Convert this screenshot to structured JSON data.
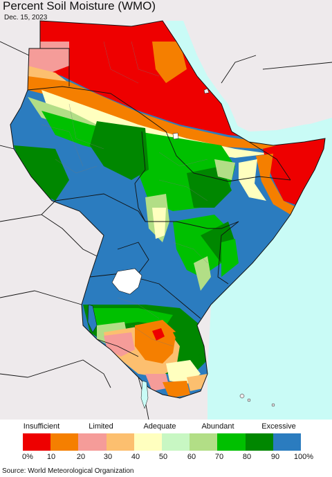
{
  "title": "Percent Soil Moisture (WMO)",
  "date": "Dec. 15, 2023",
  "source": "Source: World Meteorological Organization",
  "legend": {
    "categories": [
      "Insufficient",
      "Limited",
      "Adequate",
      "Abundant",
      "Excessive"
    ],
    "ticks": [
      "0%",
      "10",
      "20",
      "30",
      "40",
      "50",
      "60",
      "70",
      "80",
      "90",
      "100%"
    ],
    "colors": [
      "#ee0000",
      "#f57f00",
      "#f59c99",
      "#fcbf6f",
      "#ffffbf",
      "#c8f7c3",
      "#b2de86",
      "#00c000",
      "#008700",
      "#2b7cbf"
    ]
  },
  "colors": {
    "sea": "#c9fbf6",
    "land_outside": "#eeeaec",
    "border": "#111111"
  }
}
